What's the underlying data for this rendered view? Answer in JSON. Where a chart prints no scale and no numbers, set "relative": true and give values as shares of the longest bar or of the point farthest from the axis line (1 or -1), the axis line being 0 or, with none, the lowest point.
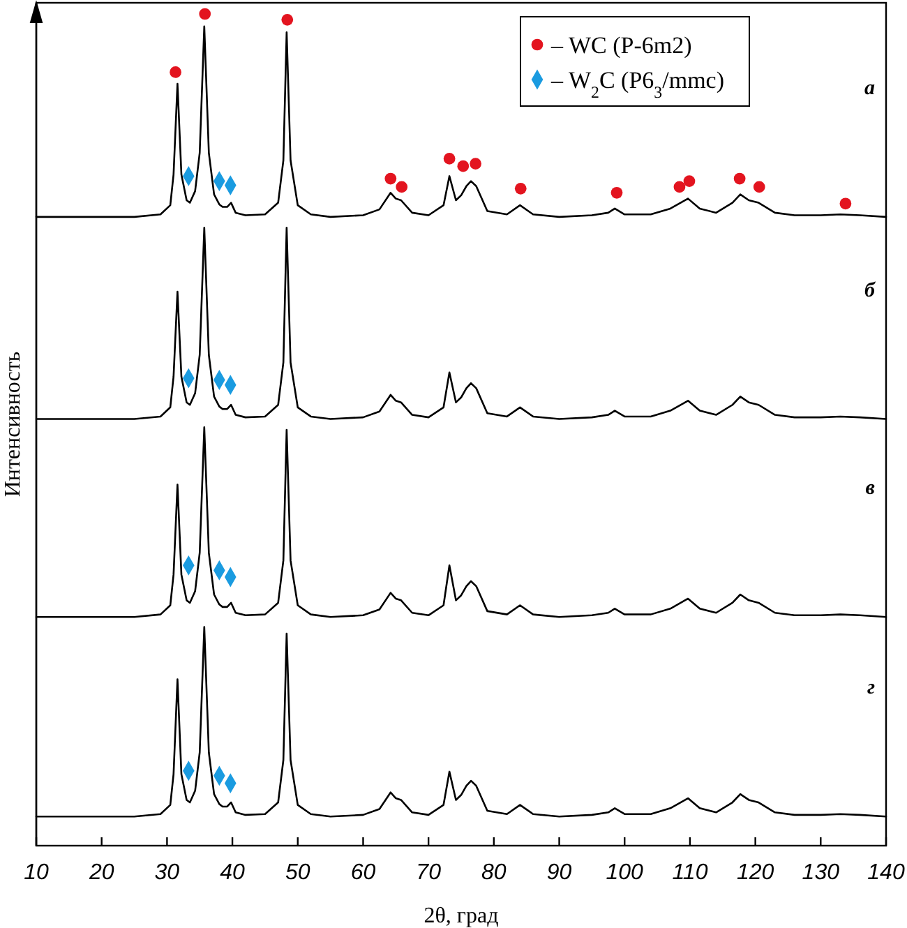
{
  "chart_data": {
    "type": "line",
    "relative": true,
    "xlabel": "2θ, град",
    "ylabel": "Интенсивность",
    "xlim": [
      10,
      140
    ],
    "xticks": [
      10,
      20,
      30,
      40,
      50,
      60,
      70,
      80,
      90,
      100,
      110,
      120,
      130,
      140
    ],
    "legend": "top right",
    "grid": false,
    "annotations": [
      "а",
      "б",
      "в",
      "г"
    ],
    "x": [
      10,
      15,
      20,
      25,
      29,
      30.5,
      31,
      31.6,
      32.2,
      33,
      33.5,
      34.3,
      35,
      35.7,
      36.4,
      37.2,
      38,
      38.5,
      39.2,
      39.8,
      40.5,
      42,
      45,
      47,
      47.8,
      48.3,
      48.9,
      50,
      52,
      55,
      60,
      62.5,
      64.2,
      65,
      65.8,
      67.5,
      70,
      72.3,
      73.2,
      74.2,
      75,
      75.8,
      76.5,
      77.3,
      79,
      82,
      84,
      86,
      90,
      95,
      97.5,
      98.5,
      100,
      104,
      107,
      109.7,
      111.5,
      114,
      116.5,
      117.7,
      119,
      120.5,
      123,
      126,
      130,
      133,
      136,
      140
    ],
    "series": [
      {
        "color": "#000000",
        "values": [
          0.756,
          0.756,
          0.756,
          0.756,
          0.759,
          0.77,
          0.807,
          0.916,
          0.807,
          0.776,
          0.773,
          0.787,
          0.833,
          0.985,
          0.833,
          0.783,
          0.771,
          0.768,
          0.768,
          0.773,
          0.761,
          0.758,
          0.759,
          0.773,
          0.824,
          0.978,
          0.824,
          0.77,
          0.759,
          0.756,
          0.758,
          0.765,
          0.785,
          0.778,
          0.776,
          0.761,
          0.758,
          0.77,
          0.805,
          0.776,
          0.782,
          0.793,
          0.799,
          0.793,
          0.763,
          0.759,
          0.77,
          0.759,
          0.756,
          0.758,
          0.761,
          0.766,
          0.759,
          0.759,
          0.766,
          0.778,
          0.766,
          0.761,
          0.773,
          0.783,
          0.776,
          0.773,
          0.761,
          0.758,
          0.758,
          0.759,
          0.758,
          0.756
        ]
      },
      {
        "color": "#000000",
        "values": [
          0.513,
          0.513,
          0.513,
          0.513,
          0.516,
          0.527,
          0.564,
          0.666,
          0.564,
          0.533,
          0.53,
          0.544,
          0.59,
          0.743,
          0.59,
          0.54,
          0.528,
          0.525,
          0.525,
          0.53,
          0.518,
          0.515,
          0.516,
          0.53,
          0.581,
          0.743,
          0.581,
          0.527,
          0.516,
          0.513,
          0.515,
          0.522,
          0.542,
          0.535,
          0.533,
          0.518,
          0.515,
          0.527,
          0.569,
          0.533,
          0.539,
          0.55,
          0.556,
          0.55,
          0.52,
          0.516,
          0.527,
          0.516,
          0.513,
          0.515,
          0.518,
          0.523,
          0.516,
          0.516,
          0.523,
          0.535,
          0.523,
          0.518,
          0.53,
          0.54,
          0.533,
          0.53,
          0.518,
          0.515,
          0.515,
          0.516,
          0.515,
          0.513
        ]
      },
      {
        "color": "#000000",
        "values": [
          0.275,
          0.275,
          0.275,
          0.275,
          0.278,
          0.289,
          0.326,
          0.434,
          0.326,
          0.295,
          0.292,
          0.306,
          0.352,
          0.503,
          0.352,
          0.302,
          0.29,
          0.287,
          0.287,
          0.292,
          0.28,
          0.277,
          0.278,
          0.292,
          0.343,
          0.5,
          0.343,
          0.289,
          0.278,
          0.275,
          0.277,
          0.284,
          0.304,
          0.297,
          0.295,
          0.28,
          0.277,
          0.289,
          0.337,
          0.295,
          0.301,
          0.312,
          0.318,
          0.312,
          0.282,
          0.278,
          0.289,
          0.278,
          0.275,
          0.277,
          0.28,
          0.285,
          0.278,
          0.278,
          0.285,
          0.297,
          0.285,
          0.28,
          0.292,
          0.302,
          0.295,
          0.292,
          0.28,
          0.277,
          0.277,
          0.278,
          0.277,
          0.275
        ]
      },
      {
        "color": "#000000",
        "values": [
          0.035,
          0.035,
          0.035,
          0.035,
          0.038,
          0.049,
          0.086,
          0.2,
          0.086,
          0.055,
          0.052,
          0.066,
          0.112,
          0.263,
          0.112,
          0.062,
          0.05,
          0.047,
          0.047,
          0.052,
          0.04,
          0.037,
          0.038,
          0.052,
          0.103,
          0.255,
          0.103,
          0.049,
          0.038,
          0.035,
          0.037,
          0.044,
          0.064,
          0.057,
          0.055,
          0.04,
          0.037,
          0.049,
          0.089,
          0.055,
          0.061,
          0.072,
          0.078,
          0.072,
          0.042,
          0.038,
          0.049,
          0.038,
          0.035,
          0.037,
          0.04,
          0.045,
          0.038,
          0.038,
          0.045,
          0.057,
          0.045,
          0.04,
          0.052,
          0.062,
          0.055,
          0.052,
          0.04,
          0.037,
          0.037,
          0.038,
          0.037,
          0.035
        ]
      },
      {
        "name": "– WC (P-6m2)",
        "type": "scatter",
        "marker": "circle",
        "color": "#e3141f",
        "x": [
          31.3,
          35.8,
          48.4,
          64.2,
          65.9,
          73.2,
          75.3,
          77.2,
          84.1,
          98.8,
          108.4,
          109.9,
          117.6,
          120.6,
          133.8
        ],
        "values": [
          0.93,
          1,
          0.993,
          0.802,
          0.792,
          0.826,
          0.817,
          0.82,
          0.79,
          0.785,
          0.792,
          0.799,
          0.802,
          0.792,
          0.772
        ]
      },
      {
        "name": "– W$_{2}$C (P6$_{3}$/mmc)",
        "type": "scatter",
        "marker": "diamond",
        "color": "#1a9be0",
        "x": [
          33.3,
          38.0,
          39.7,
          33.3,
          38.0,
          39.7,
          33.3,
          38.0,
          39.7,
          33.3,
          38.0,
          39.7
        ],
        "values": [
          0.805,
          0.799,
          0.794,
          0.562,
          0.56,
          0.554,
          0.337,
          0.331,
          0.323,
          0.09,
          0.084,
          0.075
        ]
      }
    ]
  }
}
